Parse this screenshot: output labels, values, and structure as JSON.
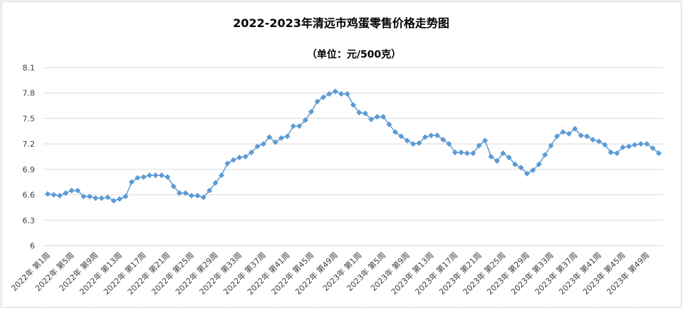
{
  "chart_data": {
    "type": "line",
    "title": "2022-2023年清远市鸡蛋零售价格走势图",
    "subtitle": "（单位：元/500克）",
    "xlabel": "",
    "ylabel": "",
    "ylim": [
      6,
      8.1
    ],
    "yticks": [
      "6",
      "6.3",
      "6.6",
      "6.9",
      "7.2",
      "7.5",
      "7.8",
      "8.1"
    ],
    "grid": "horizontal",
    "legend": "none",
    "color": "#5B9BD5",
    "x_tick_labels": [
      "2022年 第1周",
      "2022年 第5周",
      "2022年 第9周",
      "2022年 第13周",
      "2022年 第17周",
      "2022年 第21周",
      "2022年 第25周",
      "2022年 第29周",
      "2022年 第33周",
      "2022年 第37周",
      "2022年 第41周",
      "2022年 第45周",
      "2022年 第49周",
      "2023年 第1周",
      "2023年 第5周",
      "2023年 第9周",
      "2023年 第13周",
      "2023年 第17周",
      "2023年 第21周",
      "2023年 第25周",
      "2023年 第29周",
      "2023年 第33周",
      "2023年 第37周",
      "2023年 第41周",
      "2023年 第45周",
      "2023年 第49周"
    ],
    "x": [
      "2022年 第1周",
      "2022年 第2周",
      "2022年 第3周",
      "2022年 第4周",
      "2022年 第5周",
      "2022年 第6周",
      "2022年 第7周",
      "2022年 第8周",
      "2022年 第9周",
      "2022年 第10周",
      "2022年 第11周",
      "2022年 第12周",
      "2022年 第13周",
      "2022年 第14周",
      "2022年 第15周",
      "2022年 第16周",
      "2022年 第17周",
      "2022年 第18周",
      "2022年 第19周",
      "2022年 第20周",
      "2022年 第21周",
      "2022年 第22周",
      "2022年 第23周",
      "2022年 第24周",
      "2022年 第25周",
      "2022年 第26周",
      "2022年 第27周",
      "2022年 第28周",
      "2022年 第29周",
      "2022年 第30周",
      "2022年 第31周",
      "2022年 第32周",
      "2022年 第33周",
      "2022年 第34周",
      "2022年 第35周",
      "2022年 第36周",
      "2022年 第37周",
      "2022年 第38周",
      "2022年 第39周",
      "2022年 第40周",
      "2022年 第41周",
      "2022年 第42周",
      "2022年 第43周",
      "2022年 第44周",
      "2022年 第45周",
      "2022年 第46周",
      "2022年 第47周",
      "2022年 第48周",
      "2022年 第49周",
      "2022年 第50周",
      "2022年 第51周",
      "2022年 第52周",
      "2023年 第1周",
      "2023年 第2周",
      "2023年 第3周",
      "2023年 第4周",
      "2023年 第5周",
      "2023年 第6周",
      "2023年 第7周",
      "2023年 第8周",
      "2023年 第9周",
      "2023年 第10周",
      "2023年 第11周",
      "2023年 第12周",
      "2023年 第13周",
      "2023年 第14周",
      "2023年 第15周",
      "2023年 第16周",
      "2023年 第17周",
      "2023年 第18周",
      "2023年 第19周",
      "2023年 第20周",
      "2023年 第21周",
      "2023年 第22周",
      "2023年 第23周",
      "2023年 第24周",
      "2023年 第25周",
      "2023年 第26周",
      "2023年 第27周",
      "2023年 第28周",
      "2023年 第29周",
      "2023年 第30周",
      "2023年 第31周",
      "2023年 第32周",
      "2023年 第33周",
      "2023年 第34周",
      "2023年 第35周",
      "2023年 第36周",
      "2023年 第37周",
      "2023年 第38周",
      "2023年 第39周",
      "2023年 第40周",
      "2023年 第41周",
      "2023年 第42周",
      "2023年 第43周",
      "2023年 第44周",
      "2023年 第45周",
      "2023年 第46周",
      "2023年 第47周",
      "2023年 第48周",
      "2023年 第49周",
      "2023年 第50周",
      "2023年 第51周"
    ],
    "values": [
      6.61,
      6.6,
      6.59,
      6.62,
      6.65,
      6.65,
      6.58,
      6.58,
      6.56,
      6.56,
      6.57,
      6.53,
      6.55,
      6.58,
      6.75,
      6.8,
      6.81,
      6.83,
      6.83,
      6.83,
      6.81,
      6.7,
      6.62,
      6.62,
      6.59,
      6.59,
      6.57,
      6.65,
      6.74,
      6.83,
      6.97,
      7.01,
      7.04,
      7.05,
      7.1,
      7.17,
      7.2,
      7.28,
      7.22,
      7.27,
      7.29,
      7.41,
      7.41,
      7.48,
      7.58,
      7.7,
      7.75,
      7.79,
      7.82,
      7.79,
      7.79,
      7.66,
      7.57,
      7.56,
      7.49,
      7.52,
      7.52,
      7.43,
      7.34,
      7.29,
      7.24,
      7.2,
      7.21,
      7.28,
      7.3,
      7.3,
      7.25,
      7.2,
      7.1,
      7.1,
      7.09,
      7.09,
      7.18,
      7.24,
      7.05,
      7.0,
      7.09,
      7.04,
      6.96,
      6.92,
      6.85,
      6.89,
      6.96,
      7.07,
      7.18,
      7.29,
      7.34,
      7.32,
      7.38,
      7.3,
      7.29,
      7.25,
      7.23,
      7.19,
      7.1,
      7.09,
      7.16,
      7.17,
      7.19,
      7.2,
      7.2,
      7.15,
      7.09
    ]
  }
}
